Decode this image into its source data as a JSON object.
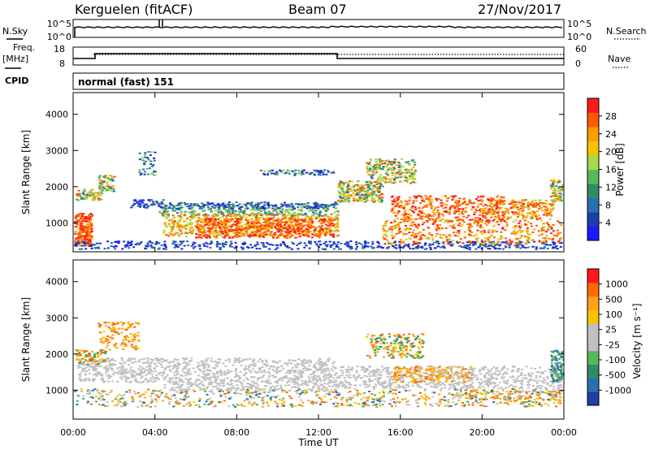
{
  "header": {
    "radar": "Kerguelen (fitACF)",
    "beam": "Beam 07",
    "date": "27/Nov/2017"
  },
  "noise_panel": {
    "left_label": "N.Sky",
    "right_label": "N.Search",
    "left_ticks": [
      "10^5",
      "10^0"
    ],
    "right_ticks": [
      "10^5",
      "10^0"
    ]
  },
  "freq_panel": {
    "left_label_1": "Freq.",
    "left_label_2": "[MHz]",
    "right_label": "Nave",
    "left_ticks": [
      "18",
      "8"
    ],
    "right_ticks": [
      "60",
      "0"
    ],
    "cpid_label": "CPID",
    "cpid_text": "normal (fast) 151"
  },
  "colors": {
    "power": [
      "#1a1aff",
      "#1c3fa8",
      "#2a6fb0",
      "#2e8c6a",
      "#58b85a",
      "#a8d84c",
      "#f5c400",
      "#ff9a00",
      "#ff5a00",
      "#ff1a1a"
    ],
    "velocity": [
      "#ff1a1a",
      "#ff6a00",
      "#ff9f1a",
      "#f5c400",
      "#c0c0c0",
      "#c0c0c0",
      "#58b85a",
      "#2e8c6a",
      "#2a6fb0",
      "#1c3fa8"
    ]
  },
  "chart_data": [
    {
      "type": "heatmap",
      "quantity": "Power",
      "ylabel": "Slant Range [km]",
      "y_ticks": [
        "1000",
        "2000",
        "3000",
        "4000"
      ],
      "colorbar_label": "Power [dB]",
      "colorbar_ticks": [
        "4",
        "8",
        "12",
        "16",
        "20",
        "24",
        "28"
      ],
      "xlim": [
        0,
        24
      ],
      "ylim": [
        200,
        4600
      ]
    },
    {
      "type": "heatmap",
      "quantity": "Velocity",
      "ylabel": "Slant Range [km]",
      "y_ticks": [
        "1000",
        "2000",
        "3000",
        "4000"
      ],
      "colorbar_label": "Velocity [m s⁻¹]",
      "colorbar_ticks": [
        "1000",
        "500",
        "100",
        "25",
        "-25",
        "-100",
        "-500",
        "-1000"
      ],
      "x_ticks": [
        "00:00",
        "04:00",
        "08:00",
        "12:00",
        "16:00",
        "20:00",
        "00:00"
      ],
      "xlabel": "Time UT",
      "xlim": [
        0,
        24
      ],
      "ylim": [
        200,
        4600
      ]
    }
  ]
}
